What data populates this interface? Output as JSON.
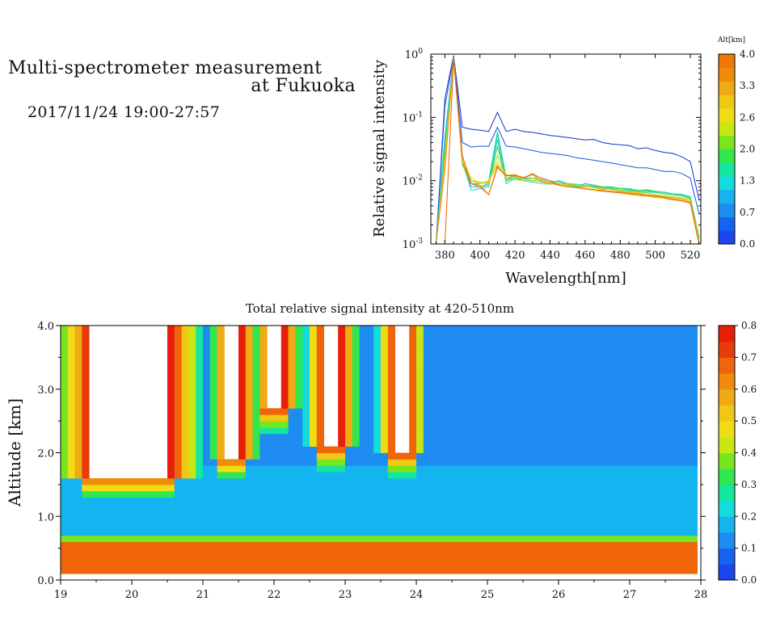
{
  "header": {
    "title_line1": "Multi-spectrometer measurement",
    "title_line2": "at Fukuoka",
    "period": "2017/11/24 19:00-27:57"
  },
  "chart_data": [
    {
      "type": "line",
      "xlabel": "Wavelength[nm]",
      "ylabel": "Relative signal intensity",
      "xlim": [
        372,
        526
      ],
      "ylim": [
        0.001,
        1
      ],
      "yscale": "log",
      "x_ticks": [
        380,
        400,
        420,
        440,
        460,
        480,
        500,
        520
      ],
      "y_ticks": [
        0.001,
        0.01,
        0.1,
        1
      ],
      "y_tick_labels": [
        {
          "base": "10",
          "exp": "-3"
        },
        {
          "base": "10",
          "exp": "-2"
        },
        {
          "base": "10",
          "exp": "-1"
        },
        {
          "base": "10",
          "exp": "0"
        }
      ],
      "x": [
        375,
        380,
        385,
        390,
        395,
        400,
        405,
        410,
        415,
        420,
        425,
        430,
        435,
        440,
        445,
        450,
        455,
        460,
        465,
        470,
        475,
        480,
        485,
        490,
        495,
        500,
        505,
        510,
        515,
        520,
        525
      ],
      "series": [
        {
          "color": "#1030d0",
          "values": [
            0.001,
            0.2,
            0.95,
            0.07,
            0.065,
            0.063,
            0.06,
            0.12,
            0.06,
            0.065,
            0.06,
            0.058,
            0.055,
            0.052,
            0.05,
            0.048,
            0.046,
            0.044,
            0.045,
            0.04,
            0.038,
            0.037,
            0.036,
            0.032,
            0.033,
            0.03,
            0.028,
            0.027,
            0.024,
            0.02,
            0.005
          ]
        },
        {
          "color": "#1a55e0",
          "values": [
            0.001,
            0.15,
            0.9,
            0.04,
            0.034,
            0.035,
            0.035,
            0.07,
            0.035,
            0.034,
            0.032,
            0.03,
            0.028,
            0.027,
            0.026,
            0.025,
            0.023,
            0.022,
            0.021,
            0.02,
            0.019,
            0.018,
            0.017,
            0.016,
            0.016,
            0.015,
            0.014,
            0.014,
            0.013,
            0.011,
            0.003
          ]
        },
        {
          "color": "#14b4e6",
          "values": [
            0.001,
            0.05,
            0.9,
            0.02,
            0.008,
            0.008,
            0.009,
            0.055,
            0.01,
            0.012,
            0.011,
            0.01,
            0.01,
            0.009,
            0.01,
            0.009,
            0.008,
            0.009,
            0.0085,
            0.008,
            0.008,
            0.0075,
            0.0075,
            0.007,
            0.007,
            0.0068,
            0.0065,
            0.0062,
            0.006,
            0.0055,
            0.0012
          ]
        },
        {
          "color": "#20d2c8",
          "values": [
            0.001,
            0.04,
            0.88,
            0.02,
            0.007,
            0.0075,
            0.008,
            0.045,
            0.009,
            0.011,
            0.01,
            0.0095,
            0.009,
            0.0088,
            0.009,
            0.0085,
            0.0078,
            0.008,
            0.008,
            0.0075,
            0.0074,
            0.007,
            0.007,
            0.0068,
            0.0066,
            0.0065,
            0.0062,
            0.006,
            0.0058,
            0.0053,
            0.0012
          ]
        },
        {
          "color": "#20e08c",
          "values": [
            0.001,
            0.03,
            0.88,
            0.02,
            0.009,
            0.009,
            0.01,
            0.06,
            0.011,
            0.012,
            0.011,
            0.011,
            0.0105,
            0.01,
            0.0095,
            0.009,
            0.0088,
            0.0085,
            0.0085,
            0.008,
            0.0078,
            0.0076,
            0.0075,
            0.007,
            0.0072,
            0.0068,
            0.0066,
            0.0062,
            0.0061,
            0.0056,
            0.0013
          ]
        },
        {
          "color": "#3cdc3c",
          "values": [
            0.001,
            0.03,
            0.87,
            0.018,
            0.009,
            0.008,
            0.0085,
            0.035,
            0.01,
            0.011,
            0.0105,
            0.01,
            0.0098,
            0.0093,
            0.009,
            0.0088,
            0.0085,
            0.008,
            0.0082,
            0.0078,
            0.0076,
            0.0074,
            0.0072,
            0.007,
            0.0069,
            0.0066,
            0.0062,
            0.006,
            0.0058,
            0.0052,
            0.0012
          ]
        },
        {
          "color": "#a0dc14",
          "values": [
            0.001,
            0.025,
            0.86,
            0.02,
            0.01,
            0.0095,
            0.009,
            0.025,
            0.011,
            0.0105,
            0.01,
            0.011,
            0.0095,
            0.0092,
            0.0088,
            0.0086,
            0.0082,
            0.008,
            0.0078,
            0.0072,
            0.0075,
            0.007,
            0.0068,
            0.0066,
            0.0064,
            0.006,
            0.0058,
            0.0056,
            0.0054,
            0.005,
            0.0012
          ]
        },
        {
          "color": "#e6dc1e",
          "values": [
            0.001,
            0.02,
            0.85,
            0.022,
            0.011,
            0.009,
            0.01,
            0.02,
            0.0125,
            0.012,
            0.0105,
            0.0102,
            0.0098,
            0.009,
            0.0086,
            0.0082,
            0.0078,
            0.0074,
            0.007,
            0.0068,
            0.0066,
            0.0064,
            0.006,
            0.0058,
            0.0057,
            0.0054,
            0.0052,
            0.005,
            0.0048,
            0.0045,
            0.0011
          ]
        },
        {
          "color": "#f0b414",
          "values": [
            0.001,
            0.02,
            0.85,
            0.02,
            0.01,
            0.009,
            0.0095,
            0.018,
            0.011,
            0.0115,
            0.011,
            0.013,
            0.01,
            0.0095,
            0.009,
            0.0088,
            0.0084,
            0.0082,
            0.0078,
            0.0075,
            0.0072,
            0.0068,
            0.0066,
            0.0064,
            0.006,
            0.0058,
            0.0056,
            0.0054,
            0.0052,
            0.0048,
            0.0011
          ]
        },
        {
          "color": "#f08c14",
          "values": [
            0.001,
            0.015,
            0.84,
            0.02,
            0.009,
            0.0085,
            0.006,
            0.016,
            0.012,
            0.0125,
            0.011,
            0.0125,
            0.0098,
            0.0092,
            0.0085,
            0.008,
            0.0078,
            0.0075,
            0.0072,
            0.007,
            0.0068,
            0.0066,
            0.0064,
            0.0062,
            0.006,
            0.0058,
            0.0055,
            0.0052,
            0.005,
            0.0046,
            0.001
          ]
        },
        {
          "color": "#e6640a",
          "values": [
            0.001,
            0.001,
            0.83,
            0.025,
            0.009,
            0.008,
            0.006,
            0.017,
            0.012,
            0.012,
            0.0112,
            0.0128,
            0.011,
            0.01,
            0.0085,
            0.008,
            0.0078,
            0.0074,
            0.0072,
            0.0068,
            0.0066,
            0.0064,
            0.0062,
            0.006,
            0.0058,
            0.0056,
            0.0054,
            0.005,
            0.0048,
            0.0044,
            0.001
          ]
        }
      ],
      "colorbar": {
        "label": "Alt[km]",
        "range": [
          0.0,
          4.0
        ],
        "tick_labels": [
          "4.0",
          "3.3",
          "2.6",
          "2.0",
          "1.3",
          "0.7",
          "0.0"
        ],
        "colors": [
          "#1e46f0",
          "#1464f0",
          "#1e8cf0",
          "#14b4f0",
          "#14dcdc",
          "#14e6a0",
          "#32e650",
          "#78e61e",
          "#c8e614",
          "#f0dc14",
          "#f0c814",
          "#f0aa14",
          "#f08c0a",
          "#f0780a"
        ]
      }
    },
    {
      "type": "heatmap",
      "title": "Total relative signal intensity at 420-510nm",
      "xlabel": "",
      "ylabel": "Altitude [km]",
      "xlim": [
        19,
        28
      ],
      "ylim": [
        0,
        4
      ],
      "x_ticks": [
        19,
        20,
        21,
        22,
        23,
        24,
        25,
        26,
        27,
        28
      ],
      "y_ticks": [
        0.0,
        1.0,
        2.0,
        3.0,
        4.0
      ],
      "y_tick_labels": [
        "0.0",
        "1.0",
        "2.0",
        "3.0",
        "4.0"
      ],
      "data_end_hour": 27.95,
      "value_range": [
        0.0,
        0.8
      ],
      "background_value": 0.15,
      "boundary_layer": {
        "from_km": 0.15,
        "to_km": 0.55,
        "value": 0.7
      },
      "cloud_columns": [
        {
          "x_start": 19.4,
          "x_end": 20.55,
          "base_km": 1.65,
          "edge_hours": 0.45
        },
        {
          "x_start": 21.35,
          "x_end": 21.55,
          "base_km": 1.95,
          "edge_hours": 0.25
        },
        {
          "x_start": 21.95,
          "x_end": 22.15,
          "base_km": 2.7,
          "edge_hours": 0.25
        },
        {
          "x_start": 22.7,
          "x_end": 22.95,
          "base_km": 2.1,
          "edge_hours": 0.25
        },
        {
          "x_start": 23.7,
          "x_end": 23.9,
          "base_km": 2.0,
          "edge_hours": 0.25
        }
      ],
      "colorbar": {
        "range": [
          0.0,
          0.8
        ],
        "tick_labels": [
          "0.8",
          "0.7",
          "0.6",
          "0.5",
          "0.4",
          "0.3",
          "0.2",
          "0.1",
          "0.0"
        ],
        "colors": [
          "#1e46f0",
          "#1464f0",
          "#1e8cf0",
          "#14b4f0",
          "#14dcdc",
          "#14e6a0",
          "#32e650",
          "#78e61e",
          "#c8e614",
          "#f0dc14",
          "#f0c814",
          "#f0aa14",
          "#f08c0a",
          "#f0640a",
          "#e63c0a",
          "#e61e0a"
        ]
      }
    }
  ]
}
